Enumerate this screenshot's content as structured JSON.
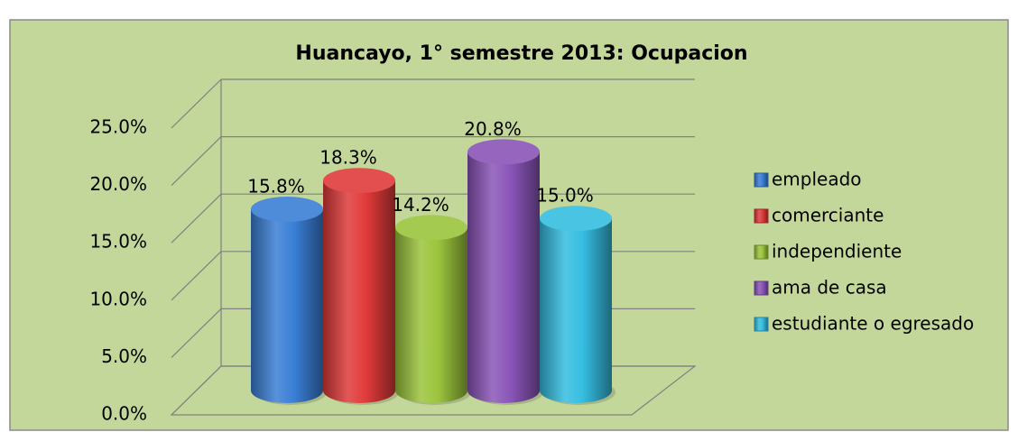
{
  "chart_data": {
    "type": "bar",
    "title": "Huancayo, 1° semestre 2013: Ocupacion",
    "series": [
      {
        "name": "empleado",
        "color": "#3a7fd5",
        "values": [
          15.8
        ],
        "value_labels": [
          "15.8%"
        ]
      },
      {
        "name": "comerciante",
        "color": "#e03a3a",
        "values": [
          18.3
        ],
        "value_labels": [
          "18.3%"
        ]
      },
      {
        "name": "independiente",
        "color": "#9bc43c",
        "values": [
          14.2
        ],
        "value_labels": [
          "14.2%"
        ]
      },
      {
        "name": "ama de casa",
        "color": "#8a55b8",
        "values": [
          20.8
        ],
        "value_labels": [
          "20.8%"
        ]
      },
      {
        "name": "estudiante o egresado",
        "color": "#35bde0",
        "values": [
          15.0
        ],
        "value_labels": [
          "15.0%"
        ]
      }
    ],
    "ylim": [
      0,
      25
    ],
    "yticks": [
      {
        "value": 0,
        "label": "0.0%"
      },
      {
        "value": 5,
        "label": "5.0%"
      },
      {
        "value": 10,
        "label": "10.0%"
      },
      {
        "value": 15,
        "label": "15.0%"
      },
      {
        "value": 20,
        "label": "20.0%"
      },
      {
        "value": 25,
        "label": "25.0%"
      }
    ],
    "grid": true,
    "legend": "right"
  }
}
